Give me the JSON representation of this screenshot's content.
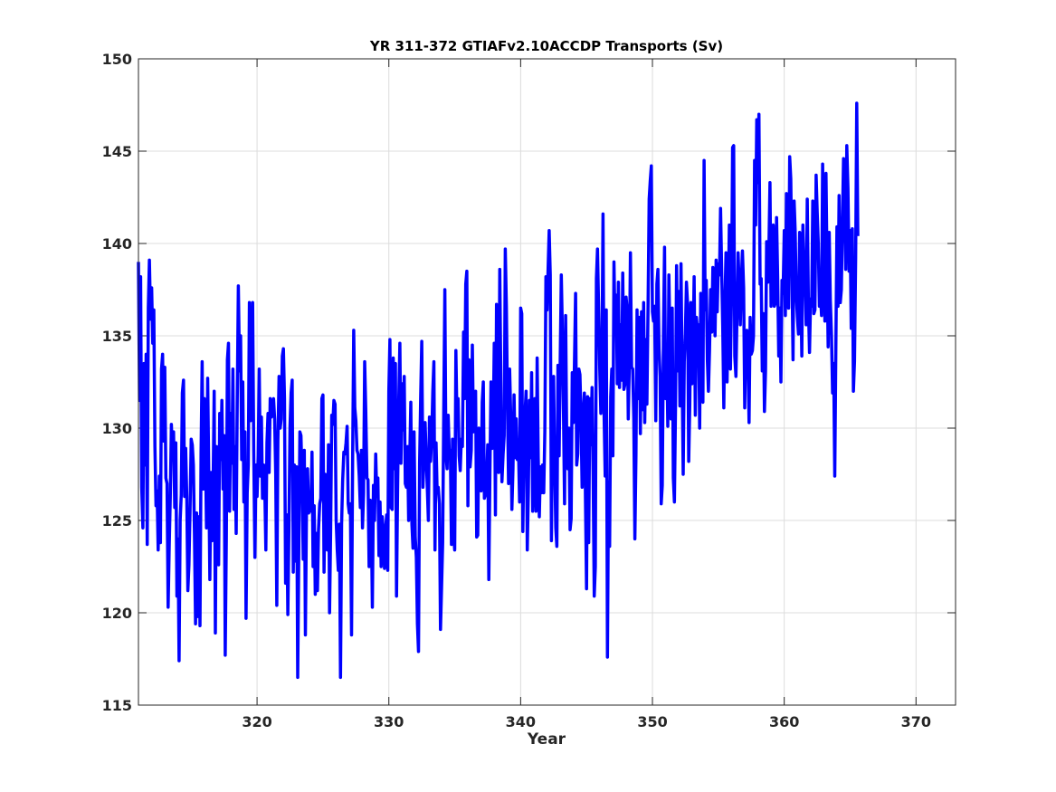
{
  "chart_data": {
    "type": "line",
    "title": "YR 311-372 GTIAFv2.10ACCDP Transports (Sv)",
    "xlabel": "Year",
    "ylabel": "",
    "xlim": [
      311,
      373
    ],
    "ylim": [
      115,
      150
    ],
    "xticks": [
      320,
      330,
      340,
      350,
      360,
      370
    ],
    "yticks": [
      115,
      120,
      125,
      130,
      135,
      140,
      145,
      150
    ],
    "grid": true,
    "line_color": "#0000ff",
    "series": [
      {
        "x_start": 311.0,
        "x_step": 0.0833333,
        "values": [
          139.0,
          131.5,
          138.2,
          126.8,
          124.6,
          133.5,
          128.0,
          134.0,
          123.7,
          136.5,
          139.1,
          135.9,
          137.6,
          134.6,
          136.4,
          129.0,
          125.8,
          126.6,
          123.4,
          127.4,
          123.8,
          133.2,
          134.0,
          129.3,
          133.3,
          127.3,
          127.0,
          120.3,
          123.6,
          126.3,
          130.2,
          128.5,
          129.8,
          125.7,
          129.2,
          120.9,
          124.0,
          117.4,
          125.0,
          126.4,
          131.9,
          132.6,
          126.3,
          128.9,
          126.3,
          121.2,
          122.6,
          125.5,
          129.4,
          129.1,
          128.0,
          124.3,
          119.4,
          125.4,
          119.8,
          125.2,
          119.3,
          128.7,
          133.6,
          126.7,
          131.6,
          129.0,
          124.6,
          132.7,
          127.6,
          121.8,
          127.6,
          123.9,
          126.9,
          132.0,
          118.9,
          129.0,
          124.8,
          122.6,
          130.8,
          128.3,
          131.5,
          126.7,
          129.6,
          117.7,
          124.0,
          133.7,
          134.6,
          125.5,
          130.8,
          128.1,
          133.2,
          125.6,
          129.0,
          124.3,
          131.6,
          137.7,
          133.1,
          135.0,
          128.3,
          132.5,
          126.0,
          129.8,
          119.7,
          126.5,
          128.0,
          136.8,
          130.4,
          132.3,
          136.8,
          128.8,
          123.0,
          128.0,
          126.3,
          128.5,
          133.2,
          127.4,
          130.6,
          126.2,
          128.0,
          126.8,
          123.4,
          129.2,
          130.8,
          127.6,
          131.6,
          130.6,
          131.4,
          131.6,
          130.5,
          127.5,
          120.4,
          129.3,
          132.8,
          130.0,
          130.5,
          133.9,
          134.3,
          131.6,
          121.6,
          125.3,
          119.9,
          124.6,
          130.1,
          131.9,
          132.6,
          122.2,
          128.0,
          122.8,
          127.9,
          116.5,
          123.3,
          129.8,
          129.6,
          127.3,
          122.9,
          128.8,
          118.8,
          125.6,
          127.8,
          125.4,
          126.3,
          125.5,
          128.7,
          122.5,
          125.8,
          121.0,
          124.3,
          121.2,
          124.5,
          125.9,
          126.2,
          131.6,
          131.8,
          122.2,
          127.5,
          124.6,
          123.4,
          129.1,
          120.0,
          124.5,
          130.7,
          130.2,
          131.5,
          131.3,
          125.0,
          123.4,
          122.3,
          124.8,
          116.5,
          124.8,
          127.2,
          128.7,
          128.6,
          129.2,
          130.1,
          125.9,
          125.4,
          125.9,
          118.8,
          128.3,
          135.3,
          131.1,
          130.4,
          128.8,
          128.6,
          127.4,
          125.7,
          128.8,
          124.6,
          126.5,
          133.6,
          131.0,
          127.3,
          127.2,
          122.5,
          126.1,
          125.4,
          120.3,
          126.9,
          125.0,
          128.6,
          126.3,
          127.3,
          123.1,
          126.0,
          122.5,
          125.2,
          124.3,
          122.4,
          124.5,
          125.3,
          122.3,
          132.0,
          134.8,
          125.7,
          125.6,
          133.8,
          127.8,
          133.5,
          120.9,
          126.7,
          131.3,
          134.6,
          128.1,
          132.4,
          129.9,
          132.8,
          127.0,
          126.8,
          129.0,
          125.0,
          128.3,
          131.4,
          124.8,
          123.5,
          129.8,
          124.1,
          123.0,
          119.4,
          117.9,
          128.1,
          131.7,
          134.7,
          126.8,
          128.5,
          130.3,
          128.5,
          126.8,
          125.0,
          130.6,
          128.2,
          129.5,
          132.0,
          133.6,
          123.4,
          129.2,
          126.5,
          126.8,
          125.9,
          119.1,
          121.4,
          123.8,
          131.0,
          137.5,
          128.6,
          127.8,
          130.7,
          128.6,
          128.8,
          123.7,
          129.4,
          124.2,
          123.4,
          134.2,
          130.5,
          131.6,
          128.5,
          127.7,
          129.4,
          129.0,
          135.2,
          131.6,
          137.8,
          138.5,
          125.8,
          133.7,
          127.9,
          128.8,
          134.5,
          129.8,
          131.0,
          132.0,
          124.1,
          124.2,
          130.0,
          129.4,
          126.6,
          131.4,
          132.5,
          126.2,
          126.4,
          127.0,
          129.1,
          121.8,
          127.5,
          132.5,
          128.9,
          129.8,
          134.6,
          125.3,
          136.7,
          129.9,
          127.6,
          138.6,
          132.6,
          127.1,
          128.6,
          129.6,
          139.7,
          136.6,
          131.3,
          127.0,
          133.2,
          130.7,
          125.6,
          127.8,
          131.8,
          128.4,
          130.5,
          128.3,
          129.1,
          126.0,
          136.5,
          136.2,
          124.4,
          128.8,
          130.8,
          132.0,
          123.4,
          126.6,
          131.5,
          128.4,
          133.0,
          125.5,
          127.6,
          131.6,
          125.5,
          133.8,
          128.4,
          125.2,
          127.9,
          126.5,
          128.0,
          126.5,
          129.8,
          138.2,
          136.4,
          138.6,
          140.7,
          138.3,
          123.9,
          131.2,
          132.8,
          128.1,
          124.6,
          123.6,
          133.4,
          128.5,
          133.7,
          138.3,
          135.2,
          130.9,
          125.9,
          136.1,
          129.3,
          127.8,
          130.0,
          124.5,
          125.1,
          133.0,
          130.3,
          133.4,
          137.3,
          128.0,
          128.6,
          133.2,
          132.9,
          130.6,
          126.8,
          130.8,
          131.9,
          126.2,
          121.3,
          131.7,
          123.8,
          131.6,
          129.1,
          132.2,
          127.4,
          120.9,
          122.5,
          138.1,
          139.7,
          136.6,
          133.2,
          130.8,
          133.6,
          141.6,
          130.7,
          127.4,
          136.4,
          117.6,
          127.1,
          123.6,
          131.7,
          133.2,
          128.5,
          139.0,
          135.5,
          137.2,
          132.4,
          137.9,
          132.2,
          135.6,
          132.6,
          138.4,
          132.1,
          132.4,
          137.1,
          136.4,
          130.5,
          133.5,
          139.5,
          133.3,
          133.2,
          130.6,
          124.0,
          128.5,
          136.4,
          131.6,
          136.0,
          129.7,
          136.3,
          131.0,
          136.8,
          130.3,
          134.8,
          131.3,
          136.7,
          142.4,
          143.4,
          144.2,
          136.3,
          135.8,
          136.6,
          130.4,
          137.8,
          138.6,
          134.3,
          132.8,
          125.9,
          126.9,
          135.1,
          139.8,
          131.6,
          134.4,
          130.1,
          138.3,
          134.7,
          130.5,
          136.5,
          127.3,
          126.0,
          131.0,
          138.8,
          133.1,
          137.4,
          131.2,
          138.9,
          133.0,
          127.5,
          133.6,
          135.1,
          137.9,
          136.7,
          128.2,
          131.3,
          136.8,
          132.4,
          134.4,
          138.2,
          130.7,
          136.0,
          135.3,
          135.6,
          130.0,
          137.3,
          131.5,
          131.4,
          144.5,
          136.4,
          138.0,
          133.7,
          132.0,
          134.2,
          137.5,
          135.2,
          138.7,
          137.4,
          135.0,
          139.1,
          136.3,
          138.9,
          138.3,
          141.9,
          138.6,
          135.5,
          131.1,
          136.6,
          139.5,
          132.5,
          136.6,
          141.0,
          133.2,
          137.3,
          145.2,
          145.3,
          133.9,
          132.8,
          136.3,
          139.5,
          137.7,
          135.6,
          138.0,
          139.6,
          137.6,
          131.1,
          135.1,
          135.3,
          133.8,
          130.3,
          136.0,
          134.0,
          134.2,
          135.0,
          144.5,
          141.0,
          146.7,
          143.3,
          147.0,
          137.8,
          138.1,
          133.1,
          136.2,
          130.9,
          133.1,
          140.1,
          137.9,
          139.6,
          143.3,
          136.6,
          140.9,
          141.0,
          136.6,
          136.8,
          141.4,
          138.2,
          133.9,
          136.5,
          132.5,
          138.0,
          137.3,
          140.7,
          136.1,
          142.7,
          137.1,
          136.5,
          144.7,
          143.5,
          138.5,
          133.7,
          142.3,
          140.6,
          137.2,
          136.0,
          135.1,
          140.6,
          138.0,
          133.9,
          141.0,
          138.9,
          138.1,
          135.6,
          142.4,
          136.6,
          134.1,
          137.0,
          136.6,
          142.3,
          136.2,
          136.4,
          143.7,
          141.7,
          140.0,
          136.6,
          137.3,
          136.1,
          144.3,
          139.5,
          135.8,
          143.8,
          138.7,
          134.4,
          140.6,
          136.9,
          135.0,
          131.9,
          133.5,
          127.4,
          134.3,
          140.9,
          136.6,
          142.6,
          136.8,
          137.5,
          141.2,
          144.6,
          142.5,
          138.6,
          145.3,
          143.0,
          138.5,
          140.7,
          135.4,
          140.8,
          132.0,
          133.6,
          139.2,
          147.6,
          140.4
        ]
      }
    ]
  }
}
